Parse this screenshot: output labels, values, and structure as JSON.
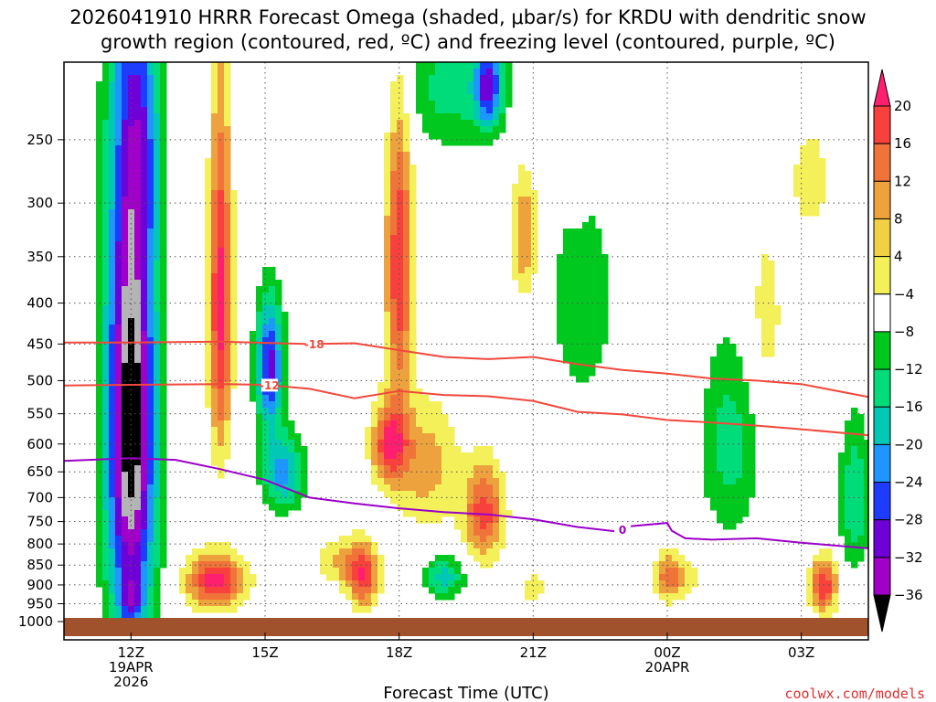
{
  "title_line1": "2026041910 HRRR Forecast Omega (shaded, μbar/s) for KRDU with dendritic snow",
  "title_line2": "growth region (contoured, red, ºC) and freezing level (contoured, purple, ºC)",
  "credit": "coolwx.com/models",
  "chart_data": {
    "type": "heatmap",
    "xlabel": "Forecast Time (UTC)",
    "ylabel": "",
    "xlim": [
      10.5,
      28.5
    ],
    "ylim": [
      1000,
      200
    ],
    "x_ticks": [
      {
        "x": 12,
        "line1": "12Z",
        "line2": "19APR",
        "line3": "2026"
      },
      {
        "x": 15,
        "line1": "15Z",
        "line2": "",
        "line3": ""
      },
      {
        "x": 18,
        "line1": "18Z",
        "line2": "",
        "line3": ""
      },
      {
        "x": 21,
        "line1": "21Z",
        "line2": "",
        "line3": ""
      },
      {
        "x": 24,
        "line1": "00Z",
        "line2": "20APR",
        "line3": ""
      },
      {
        "x": 27,
        "line1": "03Z",
        "line2": "",
        "line3": ""
      }
    ],
    "y_ticks": [
      250,
      300,
      350,
      400,
      450,
      500,
      550,
      600,
      650,
      700,
      750,
      800,
      850,
      900,
      950,
      1000
    ],
    "grid": true,
    "colorbar": {
      "labels": [
        "20",
        "16",
        "12",
        "8",
        "4",
        "−4",
        "−8",
        "−12",
        "−16",
        "−20",
        "−24",
        "−28",
        "−32",
        "−36"
      ],
      "colors": [
        "#ff1f6e",
        "#f8403c",
        "#f0743a",
        "#eea23e",
        "#f1d044",
        "#f3f05a",
        "#ffffff",
        "#00c81e",
        "#00dc7a",
        "#00c8b4",
        "#1e96ff",
        "#1e3cff",
        "#6e00d8",
        "#a000c8",
        "#b4b4b4",
        "#000000"
      ]
    },
    "omega_cells": [
      {
        "x": 12.0,
        "p": 560,
        "rx": 0.55,
        "rp": 440,
        "value": -40
      },
      {
        "x": 12.0,
        "p": 940,
        "rx": 0.25,
        "rp": 60,
        "value": -12
      },
      {
        "x": 12.3,
        "p": 260,
        "rx": 0.4,
        "rp": 80,
        "value": -8
      },
      {
        "x": 13.9,
        "p": 890,
        "rx": 0.65,
        "rp": 70,
        "value": 22
      },
      {
        "x": 14.0,
        "p": 400,
        "rx": 0.25,
        "rp": 200,
        "value": 22
      },
      {
        "x": 15.1,
        "p": 480,
        "rx": 0.3,
        "rp": 90,
        "value": -26
      },
      {
        "x": 15.4,
        "p": 650,
        "rx": 0.45,
        "rp": 70,
        "value": -18
      },
      {
        "x": 16.7,
        "p": 840,
        "rx": 0.55,
        "rp": 60,
        "value": 8
      },
      {
        "x": 17.2,
        "p": 880,
        "rx": 0.35,
        "rp": 80,
        "value": 18
      },
      {
        "x": 17.8,
        "p": 600,
        "rx": 0.4,
        "rp": 70,
        "value": 20
      },
      {
        "x": 18.0,
        "p": 360,
        "rx": 0.3,
        "rp": 150,
        "value": 20
      },
      {
        "x": 18.6,
        "p": 640,
        "rx": 0.7,
        "rp": 120,
        "value": 10
      },
      {
        "x": 19.0,
        "p": 880,
        "rx": 0.45,
        "rp": 50,
        "value": -14
      },
      {
        "x": 19.9,
        "p": 730,
        "rx": 0.45,
        "rp": 100,
        "value": 18
      },
      {
        "x": 19.2,
        "p": 215,
        "rx": 1.1,
        "rp": 40,
        "value": -10
      },
      {
        "x": 20.0,
        "p": 215,
        "rx": 0.3,
        "rp": 25,
        "value": -22
      },
      {
        "x": 20.8,
        "p": 330,
        "rx": 0.3,
        "rp": 60,
        "value": 12
      },
      {
        "x": 21.0,
        "p": 910,
        "rx": 0.25,
        "rp": 40,
        "value": 8
      },
      {
        "x": 22.1,
        "p": 400,
        "rx": 0.7,
        "rp": 120,
        "value": -8
      },
      {
        "x": 22.0,
        "p": 290,
        "rx": 0.2,
        "rp": 25,
        "value": 6
      },
      {
        "x": 24.0,
        "p": 880,
        "rx": 0.3,
        "rp": 60,
        "value": 12
      },
      {
        "x": 24.4,
        "p": 880,
        "rx": 0.5,
        "rp": 60,
        "value": 6
      },
      {
        "x": 25.4,
        "p": 600,
        "rx": 0.65,
        "rp": 170,
        "value": -10
      },
      {
        "x": 26.2,
        "p": 420,
        "rx": 0.45,
        "rp": 120,
        "value": 6
      },
      {
        "x": 27.5,
        "p": 900,
        "rx": 0.3,
        "rp": 70,
        "value": 20
      },
      {
        "x": 28.2,
        "p": 700,
        "rx": 0.35,
        "rp": 150,
        "value": -12
      },
      {
        "x": 27.2,
        "p": 280,
        "rx": 0.5,
        "rp": 50,
        "value": 6
      }
    ],
    "contours": [
      {
        "name": "-18",
        "label": "-18",
        "label_x": 16.1,
        "color": "#f0483c",
        "points": [
          [
            10.5,
            448
          ],
          [
            12,
            448
          ],
          [
            14,
            447
          ],
          [
            16,
            450
          ],
          [
            17,
            449
          ],
          [
            18,
            458
          ],
          [
            19,
            467
          ],
          [
            20,
            470
          ],
          [
            21,
            467
          ],
          [
            22,
            477
          ],
          [
            23,
            485
          ],
          [
            24,
            490
          ],
          [
            25,
            497
          ],
          [
            26,
            500
          ],
          [
            27,
            505
          ],
          [
            28.5,
            524
          ]
        ]
      },
      {
        "name": "-12",
        "label": "-12",
        "label_x": 15.1,
        "color": "#f0483c",
        "points": [
          [
            10.5,
            507
          ],
          [
            12,
            506
          ],
          [
            14,
            505
          ],
          [
            15,
            506
          ],
          [
            16,
            512
          ],
          [
            17,
            526
          ],
          [
            18,
            515
          ],
          [
            19,
            521
          ],
          [
            20,
            523
          ],
          [
            21,
            530
          ],
          [
            22,
            547
          ],
          [
            23,
            551
          ],
          [
            24,
            560
          ],
          [
            25,
            564
          ],
          [
            26,
            569
          ],
          [
            27,
            575
          ],
          [
            28.5,
            585
          ]
        ]
      },
      {
        "name": "0",
        "label": "0",
        "label_x": 23.0,
        "color": "#9b00c8",
        "points": [
          [
            10.5,
            630
          ],
          [
            12,
            625
          ],
          [
            13,
            628
          ],
          [
            14,
            645
          ],
          [
            15,
            665
          ],
          [
            16,
            700
          ],
          [
            17,
            712
          ],
          [
            18,
            722
          ],
          [
            19,
            730
          ],
          [
            20,
            735
          ],
          [
            21,
            745
          ],
          [
            22,
            762
          ],
          [
            22.9,
            772
          ],
          [
            23.2,
            760
          ],
          [
            24.0,
            753
          ],
          [
            24.1,
            770
          ],
          [
            24.4,
            787
          ],
          [
            25,
            790
          ],
          [
            26,
            787
          ],
          [
            27,
            797
          ],
          [
            28.5,
            810
          ]
        ]
      }
    ]
  }
}
